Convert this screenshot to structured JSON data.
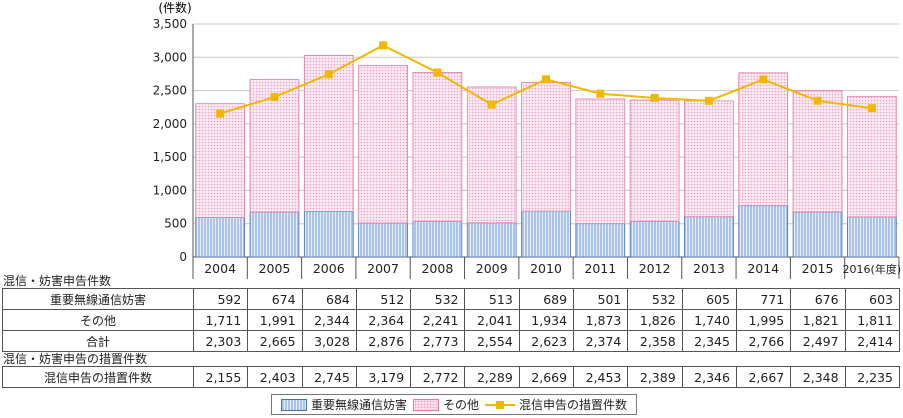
{
  "chart_data": {
    "type": "bar",
    "stacked": true,
    "y_unit_label": "(件数)",
    "ylim": [
      0,
      3500
    ],
    "yticks": [
      "0",
      "500",
      "1,000",
      "1,500",
      "2,000",
      "2,500",
      "3,000",
      "3,500"
    ],
    "categories": [
      "2004",
      "2005",
      "2006",
      "2007",
      "2008",
      "2009",
      "2010",
      "2011",
      "2012",
      "2013",
      "2014",
      "2015",
      "2016(年度)"
    ],
    "series": [
      {
        "name": "重要無線通信妨害",
        "type": "bar",
        "values": [
          592,
          674,
          684,
          512,
          532,
          513,
          689,
          501,
          532,
          605,
          771,
          676,
          603
        ],
        "color": "#a9c4ea"
      },
      {
        "name": "その他",
        "type": "bar",
        "values": [
          1711,
          1991,
          2344,
          2364,
          2241,
          2041,
          1934,
          1873,
          1826,
          1740,
          1995,
          1821,
          1811
        ],
        "color": "#f6c3d8"
      },
      {
        "name": "混信申告の措置件数",
        "type": "line",
        "values": [
          2155,
          2403,
          2745,
          3179,
          2772,
          2289,
          2669,
          2453,
          2389,
          2346,
          2667,
          2348,
          2235
        ],
        "color": "#f2b800"
      }
    ],
    "totals_label": "合計",
    "totals": [
      2303,
      2665,
      3028,
      2876,
      2773,
      2554,
      2623,
      2374,
      2358,
      2345,
      2766,
      2497,
      2414
    ]
  },
  "table1": {
    "section_title": "混信・妨害申告件数",
    "rows": [
      {
        "label": "重要無線通信妨害",
        "values": [
          "592",
          "674",
          "684",
          "512",
          "532",
          "513",
          "689",
          "501",
          "532",
          "605",
          "771",
          "676",
          "603"
        ]
      },
      {
        "label": "その他",
        "values": [
          "1,711",
          "1,991",
          "2,344",
          "2,364",
          "2,241",
          "2,041",
          "1,934",
          "1,873",
          "1,826",
          "1,740",
          "1,995",
          "1,821",
          "1,811"
        ]
      },
      {
        "label": "合計",
        "values": [
          "2,303",
          "2,665",
          "3,028",
          "2,876",
          "2,773",
          "2,554",
          "2,623",
          "2,374",
          "2,358",
          "2,345",
          "2,766",
          "2,497",
          "2,414"
        ]
      }
    ]
  },
  "table2": {
    "section_title": "混信・妨害申告の措置件数",
    "rows": [
      {
        "label": "混信申告の措置件数",
        "values": [
          "2,155",
          "2,403",
          "2,745",
          "3,179",
          "2,772",
          "2,289",
          "2,669",
          "2,453",
          "2,389",
          "2,346",
          "2,667",
          "2,348",
          "2,235"
        ]
      }
    ]
  },
  "legend": {
    "items": [
      "重要無線通信妨害",
      "その他",
      "混信申告の措置件数"
    ]
  }
}
